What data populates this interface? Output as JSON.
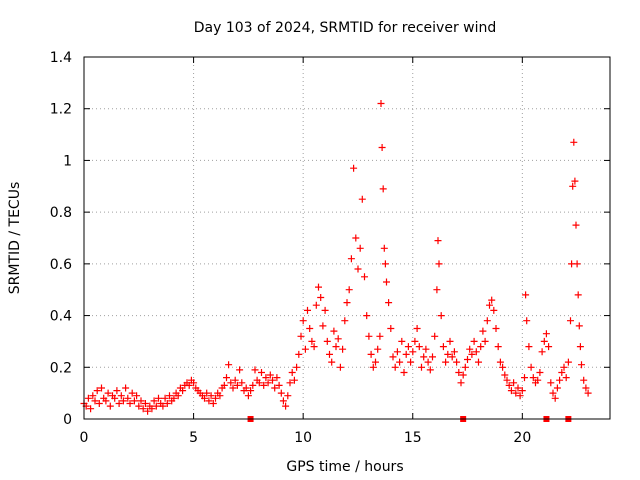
{
  "chart_data": {
    "type": "scatter",
    "title": "Day 103 of 2024, SRMTID for receiver wind",
    "xlabel": "GPS time / hours",
    "ylabel": "SRMTID / TECUs",
    "xlim": [
      0,
      24
    ],
    "ylim": [
      0,
      1.4
    ],
    "xticks": [
      0,
      5,
      10,
      15,
      20
    ],
    "xtick_labels": [
      "0",
      "5",
      "10",
      "15",
      "20"
    ],
    "yticks": [
      0,
      0.2,
      0.4,
      0.6,
      0.8,
      1,
      1.2,
      1.4
    ],
    "ytick_labels": [
      "0",
      "0.2",
      "0.4",
      "0.6",
      "0.8",
      "1",
      "1.2",
      "1.4"
    ],
    "grid": true,
    "marker": "+",
    "color": "#ff0000",
    "outage_markers_x": [
      7.6,
      17.3,
      21.1,
      22.1
    ],
    "series": [
      {
        "name": "SRMTID",
        "points": [
          [
            0.0,
            0.06
          ],
          [
            0.1,
            0.05
          ],
          [
            0.2,
            0.08
          ],
          [
            0.3,
            0.04
          ],
          [
            0.4,
            0.09
          ],
          [
            0.5,
            0.07
          ],
          [
            0.6,
            0.11
          ],
          [
            0.7,
            0.06
          ],
          [
            0.8,
            0.12
          ],
          [
            0.9,
            0.08
          ],
          [
            1.0,
            0.07
          ],
          [
            1.1,
            0.1
          ],
          [
            1.2,
            0.05
          ],
          [
            1.3,
            0.09
          ],
          [
            1.4,
            0.08
          ],
          [
            1.5,
            0.11
          ],
          [
            1.6,
            0.06
          ],
          [
            1.7,
            0.09
          ],
          [
            1.8,
            0.07
          ],
          [
            1.9,
            0.12
          ],
          [
            2.0,
            0.08
          ],
          [
            2.1,
            0.06
          ],
          [
            2.2,
            0.1
          ],
          [
            2.3,
            0.07
          ],
          [
            2.4,
            0.09
          ],
          [
            2.5,
            0.05
          ],
          [
            2.6,
            0.07
          ],
          [
            2.7,
            0.04
          ],
          [
            2.8,
            0.06
          ],
          [
            2.9,
            0.03
          ],
          [
            3.0,
            0.05
          ],
          [
            3.1,
            0.04
          ],
          [
            3.2,
            0.07
          ],
          [
            3.3,
            0.05
          ],
          [
            3.4,
            0.08
          ],
          [
            3.5,
            0.06
          ],
          [
            3.6,
            0.05
          ],
          [
            3.7,
            0.08
          ],
          [
            3.8,
            0.06
          ],
          [
            3.9,
            0.09
          ],
          [
            4.0,
            0.07
          ],
          [
            4.1,
            0.08
          ],
          [
            4.2,
            0.1
          ],
          [
            4.3,
            0.09
          ],
          [
            4.4,
            0.12
          ],
          [
            4.5,
            0.11
          ],
          [
            4.6,
            0.13
          ],
          [
            4.7,
            0.14
          ],
          [
            4.8,
            0.13
          ],
          [
            4.9,
            0.15
          ],
          [
            5.0,
            0.14
          ],
          [
            5.1,
            0.12
          ],
          [
            5.2,
            0.11
          ],
          [
            5.3,
            0.1
          ],
          [
            5.4,
            0.09
          ],
          [
            5.5,
            0.08
          ],
          [
            5.6,
            0.1
          ],
          [
            5.7,
            0.07
          ],
          [
            5.8,
            0.09
          ],
          [
            5.9,
            0.06
          ],
          [
            6.0,
            0.08
          ],
          [
            6.1,
            0.1
          ],
          [
            6.2,
            0.09
          ],
          [
            6.3,
            0.12
          ],
          [
            6.4,
            0.13
          ],
          [
            6.5,
            0.16
          ],
          [
            6.6,
            0.21
          ],
          [
            6.7,
            0.14
          ],
          [
            6.8,
            0.12
          ],
          [
            6.9,
            0.15
          ],
          [
            7.0,
            0.13
          ],
          [
            7.1,
            0.19
          ],
          [
            7.2,
            0.14
          ],
          [
            7.3,
            0.11
          ],
          [
            7.4,
            0.12
          ],
          [
            7.5,
            0.09
          ],
          [
            7.6,
            0.11
          ],
          [
            7.7,
            0.13
          ],
          [
            7.8,
            0.19
          ],
          [
            7.9,
            0.15
          ],
          [
            8.0,
            0.14
          ],
          [
            8.1,
            0.18
          ],
          [
            8.2,
            0.13
          ],
          [
            8.3,
            0.16
          ],
          [
            8.4,
            0.14
          ],
          [
            8.5,
            0.17
          ],
          [
            8.6,
            0.15
          ],
          [
            8.7,
            0.12
          ],
          [
            8.8,
            0.16
          ],
          [
            8.9,
            0.13
          ],
          [
            9.0,
            0.1
          ],
          [
            9.1,
            0.07
          ],
          [
            9.2,
            0.05
          ],
          [
            9.3,
            0.09
          ],
          [
            9.4,
            0.14
          ],
          [
            9.5,
            0.18
          ],
          [
            9.6,
            0.15
          ],
          [
            9.7,
            0.2
          ],
          [
            9.8,
            0.25
          ],
          [
            9.9,
            0.32
          ],
          [
            10.0,
            0.38
          ],
          [
            10.1,
            0.27
          ],
          [
            10.2,
            0.42
          ],
          [
            10.3,
            0.35
          ],
          [
            10.4,
            0.3
          ],
          [
            10.5,
            0.28
          ],
          [
            10.6,
            0.44
          ],
          [
            10.7,
            0.51
          ],
          [
            10.8,
            0.47
          ],
          [
            10.9,
            0.36
          ],
          [
            11.0,
            0.42
          ],
          [
            11.1,
            0.3
          ],
          [
            11.2,
            0.25
          ],
          [
            11.3,
            0.22
          ],
          [
            11.4,
            0.34
          ],
          [
            11.5,
            0.28
          ],
          [
            11.6,
            0.31
          ],
          [
            11.7,
            0.2
          ],
          [
            11.8,
            0.27
          ],
          [
            11.9,
            0.38
          ],
          [
            12.0,
            0.45
          ],
          [
            12.1,
            0.5
          ],
          [
            12.2,
            0.62
          ],
          [
            12.3,
            0.97
          ],
          [
            12.4,
            0.7
          ],
          [
            12.5,
            0.58
          ],
          [
            12.6,
            0.66
          ],
          [
            12.7,
            0.85
          ],
          [
            12.8,
            0.55
          ],
          [
            12.9,
            0.4
          ],
          [
            13.0,
            0.32
          ],
          [
            13.1,
            0.25
          ],
          [
            13.2,
            0.2
          ],
          [
            13.3,
            0.22
          ],
          [
            13.4,
            0.27
          ],
          [
            13.5,
            0.32
          ],
          [
            13.55,
            1.22
          ],
          [
            13.6,
            1.05
          ],
          [
            13.65,
            0.89
          ],
          [
            13.7,
            0.66
          ],
          [
            13.75,
            0.6
          ],
          [
            13.8,
            0.53
          ],
          [
            13.9,
            0.45
          ],
          [
            14.0,
            0.35
          ],
          [
            14.1,
            0.24
          ],
          [
            14.2,
            0.2
          ],
          [
            14.3,
            0.26
          ],
          [
            14.4,
            0.22
          ],
          [
            14.5,
            0.3
          ],
          [
            14.6,
            0.18
          ],
          [
            14.7,
            0.25
          ],
          [
            14.8,
            0.28
          ],
          [
            14.9,
            0.22
          ],
          [
            15.0,
            0.26
          ],
          [
            15.1,
            0.3
          ],
          [
            15.2,
            0.35
          ],
          [
            15.3,
            0.28
          ],
          [
            15.4,
            0.2
          ],
          [
            15.5,
            0.24
          ],
          [
            15.6,
            0.27
          ],
          [
            15.7,
            0.22
          ],
          [
            15.8,
            0.19
          ],
          [
            15.9,
            0.24
          ],
          [
            16.0,
            0.32
          ],
          [
            16.1,
            0.5
          ],
          [
            16.15,
            0.69
          ],
          [
            16.2,
            0.6
          ],
          [
            16.3,
            0.4
          ],
          [
            16.4,
            0.28
          ],
          [
            16.5,
            0.22
          ],
          [
            16.6,
            0.25
          ],
          [
            16.7,
            0.3
          ],
          [
            16.8,
            0.24
          ],
          [
            16.9,
            0.26
          ],
          [
            17.0,
            0.22
          ],
          [
            17.1,
            0.18
          ],
          [
            17.2,
            0.14
          ],
          [
            17.3,
            0.17
          ],
          [
            17.4,
            0.2
          ],
          [
            17.5,
            0.23
          ],
          [
            17.6,
            0.27
          ],
          [
            17.7,
            0.25
          ],
          [
            17.8,
            0.3
          ],
          [
            17.9,
            0.26
          ],
          [
            18.0,
            0.22
          ],
          [
            18.1,
            0.28
          ],
          [
            18.2,
            0.34
          ],
          [
            18.3,
            0.3
          ],
          [
            18.4,
            0.38
          ],
          [
            18.5,
            0.44
          ],
          [
            18.6,
            0.46
          ],
          [
            18.7,
            0.42
          ],
          [
            18.8,
            0.35
          ],
          [
            18.9,
            0.28
          ],
          [
            19.0,
            0.22
          ],
          [
            19.1,
            0.2
          ],
          [
            19.2,
            0.17
          ],
          [
            19.3,
            0.15
          ],
          [
            19.4,
            0.13
          ],
          [
            19.5,
            0.11
          ],
          [
            19.6,
            0.14
          ],
          [
            19.7,
            0.1
          ],
          [
            19.8,
            0.12
          ],
          [
            19.9,
            0.09
          ],
          [
            20.0,
            0.11
          ],
          [
            20.1,
            0.16
          ],
          [
            20.15,
            0.48
          ],
          [
            20.2,
            0.38
          ],
          [
            20.3,
            0.28
          ],
          [
            20.4,
            0.2
          ],
          [
            20.5,
            0.16
          ],
          [
            20.6,
            0.14
          ],
          [
            20.7,
            0.15
          ],
          [
            20.8,
            0.18
          ],
          [
            20.9,
            0.26
          ],
          [
            21.0,
            0.3
          ],
          [
            21.1,
            0.33
          ],
          [
            21.2,
            0.28
          ],
          [
            21.3,
            0.14
          ],
          [
            21.4,
            0.1
          ],
          [
            21.5,
            0.08
          ],
          [
            21.6,
            0.12
          ],
          [
            21.7,
            0.15
          ],
          [
            21.8,
            0.18
          ],
          [
            21.9,
            0.2
          ],
          [
            22.0,
            0.16
          ],
          [
            22.1,
            0.22
          ],
          [
            22.2,
            0.38
          ],
          [
            22.25,
            0.6
          ],
          [
            22.3,
            0.9
          ],
          [
            22.35,
            1.07
          ],
          [
            22.4,
            0.92
          ],
          [
            22.45,
            0.75
          ],
          [
            22.5,
            0.6
          ],
          [
            22.55,
            0.48
          ],
          [
            22.6,
            0.36
          ],
          [
            22.65,
            0.28
          ],
          [
            22.7,
            0.21
          ],
          [
            22.8,
            0.15
          ],
          [
            22.9,
            0.12
          ],
          [
            23.0,
            0.1
          ]
        ]
      }
    ]
  }
}
